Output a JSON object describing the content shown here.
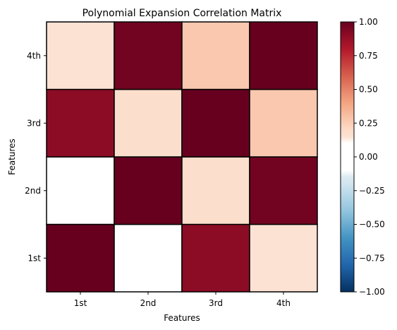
{
  "chart_data": {
    "type": "heatmap",
    "title": "Polynomial Expansion Correlation Matrix",
    "xlabel": "Features",
    "ylabel": "Features",
    "x_categories": [
      "1st",
      "2nd",
      "3rd",
      "4th"
    ],
    "y_categories": [
      "1st",
      "2nd",
      "3rd",
      "4th"
    ],
    "values": [
      [
        1.0,
        0.0,
        0.9,
        0.15
      ],
      [
        0.0,
        1.0,
        0.18,
        0.97
      ],
      [
        0.9,
        0.18,
        1.0,
        0.27
      ],
      [
        0.15,
        0.97,
        0.27,
        1.0
      ]
    ],
    "value_range": [
      -1.0,
      1.0
    ],
    "colormap": "RdBu_r",
    "colorbar": {
      "ticks": [
        -1.0,
        -0.75,
        -0.5,
        -0.25,
        0.0,
        0.25,
        0.5,
        0.75,
        1.0
      ],
      "tick_labels": [
        "−1.00",
        "−0.75",
        "−0.50",
        "−0.25",
        "0.00",
        "0.25",
        "0.50",
        "0.75",
        "1.00"
      ]
    },
    "grid": false,
    "colorbar_placement": "right"
  }
}
